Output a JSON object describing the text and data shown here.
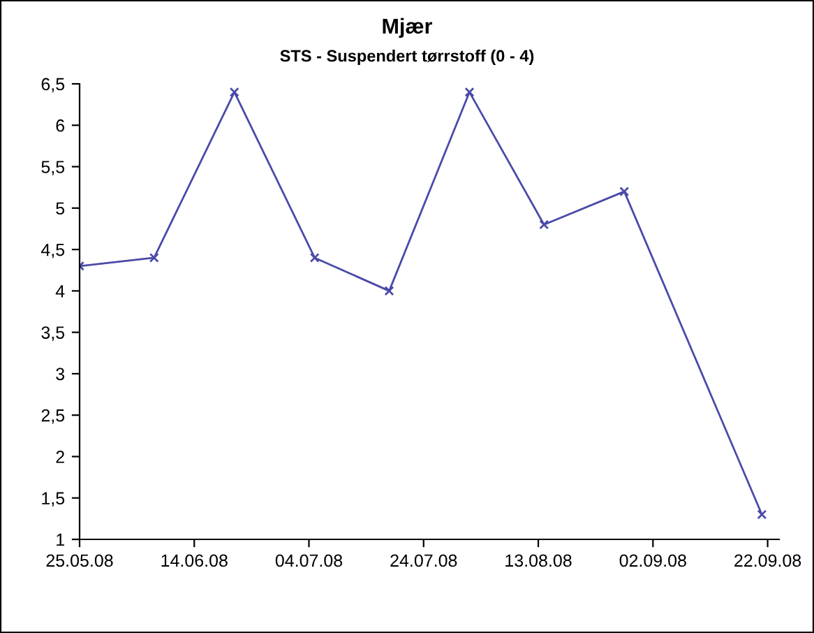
{
  "chart_data": {
    "type": "line",
    "title": "Mjær",
    "subtitle": "STS - Suspendert tørrstoff (0 - 4)",
    "x": [
      "2008-05-25",
      "2008-06-07",
      "2008-06-21",
      "2008-07-05",
      "2008-07-18",
      "2008-08-01",
      "2008-08-14",
      "2008-08-28",
      "2008-09-21"
    ],
    "series": [
      {
        "color": "#4a4aa8",
        "values": [
          4.3,
          4.4,
          6.4,
          4.4,
          4.0,
          6.4,
          4.8,
          5.2,
          1.3
        ]
      }
    ],
    "xlim": [
      "2008-05-25",
      "2008-09-24"
    ],
    "xticks": [
      {
        "value": "2008-05-25",
        "label": "25.05.08"
      },
      {
        "value": "2008-06-14",
        "label": "14.06.08"
      },
      {
        "value": "2008-07-04",
        "label": "04.07.08"
      },
      {
        "value": "2008-07-24",
        "label": "24.07.08"
      },
      {
        "value": "2008-08-13",
        "label": "13.08.08"
      },
      {
        "value": "2008-09-02",
        "label": "02.09.08"
      },
      {
        "value": "2008-09-22",
        "label": "22.09.08"
      }
    ],
    "ylim": [
      1,
      6.5
    ],
    "yticks": [
      1,
      {
        "value": 1.5,
        "label": "1,5"
      },
      2,
      {
        "value": 2.5,
        "label": "2,5"
      },
      3,
      {
        "value": 3.5,
        "label": "3,5"
      },
      4,
      {
        "value": 4.5,
        "label": "4,5"
      },
      5,
      {
        "value": 5.5,
        "label": "5,5"
      },
      6,
      {
        "value": 6.5,
        "label": "6,5"
      }
    ],
    "grid": false,
    "legend": false,
    "marker": "cross",
    "line_style": "solid"
  }
}
